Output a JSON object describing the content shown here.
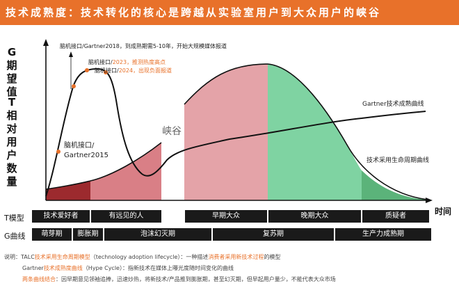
{
  "title": "技术成熟度：技术转化的核心是跨越从实验室用户到大众用户的峡谷",
  "y_axis": {
    "g_label": [
      "G",
      "期",
      "望",
      "值"
    ],
    "t_label": [
      "T",
      "相",
      "对",
      "用",
      "户",
      "数",
      "量"
    ]
  },
  "x_axis_label": "时间",
  "chasm_label": "峡谷",
  "curves": {
    "gartner": "Gartner技术成熟曲线",
    "lifecycle": "技术采用生命周期曲线"
  },
  "annotations": {
    "top": "脑机接口/Gartner2018，到成熟期需5-10年，开始大规模媒体报道",
    "a2023_prefix": "脑机接口/",
    "a2023_hl": "2023，推测热度高点",
    "a2024_prefix": "脑机接口/",
    "a2024_hl": "2024，出现负面报道",
    "a2015_line1": "脑机接口/",
    "a2015_line2": "Gartner2015"
  },
  "t_row": {
    "label": "T模型",
    "cells": [
      "技术爱好者",
      "有远见的人",
      "早期大众",
      "晚期大众",
      "质疑者"
    ]
  },
  "g_row": {
    "label": "G曲线",
    "cells": [
      "萌芽期",
      "膨胀期",
      "泡沫幻灭期",
      "复苏期",
      "生产力成熟期"
    ]
  },
  "notes": {
    "line1_prefix": "说明：TALC",
    "line1_hl1": "技术采用生命周期模型",
    "line1_mid": "（technology adoption lifecycle）：一种描述",
    "line1_hl2": "消费者采用新技术过程",
    "line1_suffix": "的模型",
    "line2_prefix": "Gartner",
    "line2_hl": "技术成熟度曲线",
    "line2_suffix": "（Hype Cycle）：指新技术在媒体上曝光度随时间变化的曲线",
    "line3_hl": "两条曲线结合",
    "line3_suffix": "：因早期意见领袖追捧，迅速炒热，将新技术/产品推到膨胀期，甚至幻灭期，但早起用户量少，不能代表大众市场"
  },
  "colors": {
    "accent": "#e8712a",
    "dark_red": "#9c2a2e",
    "pink": "#d97f86",
    "light_pink": "#e4a3a8",
    "green": "#7fd3a2",
    "dark_green": "#5bb37a",
    "bar": "#1a1a1a"
  }
}
